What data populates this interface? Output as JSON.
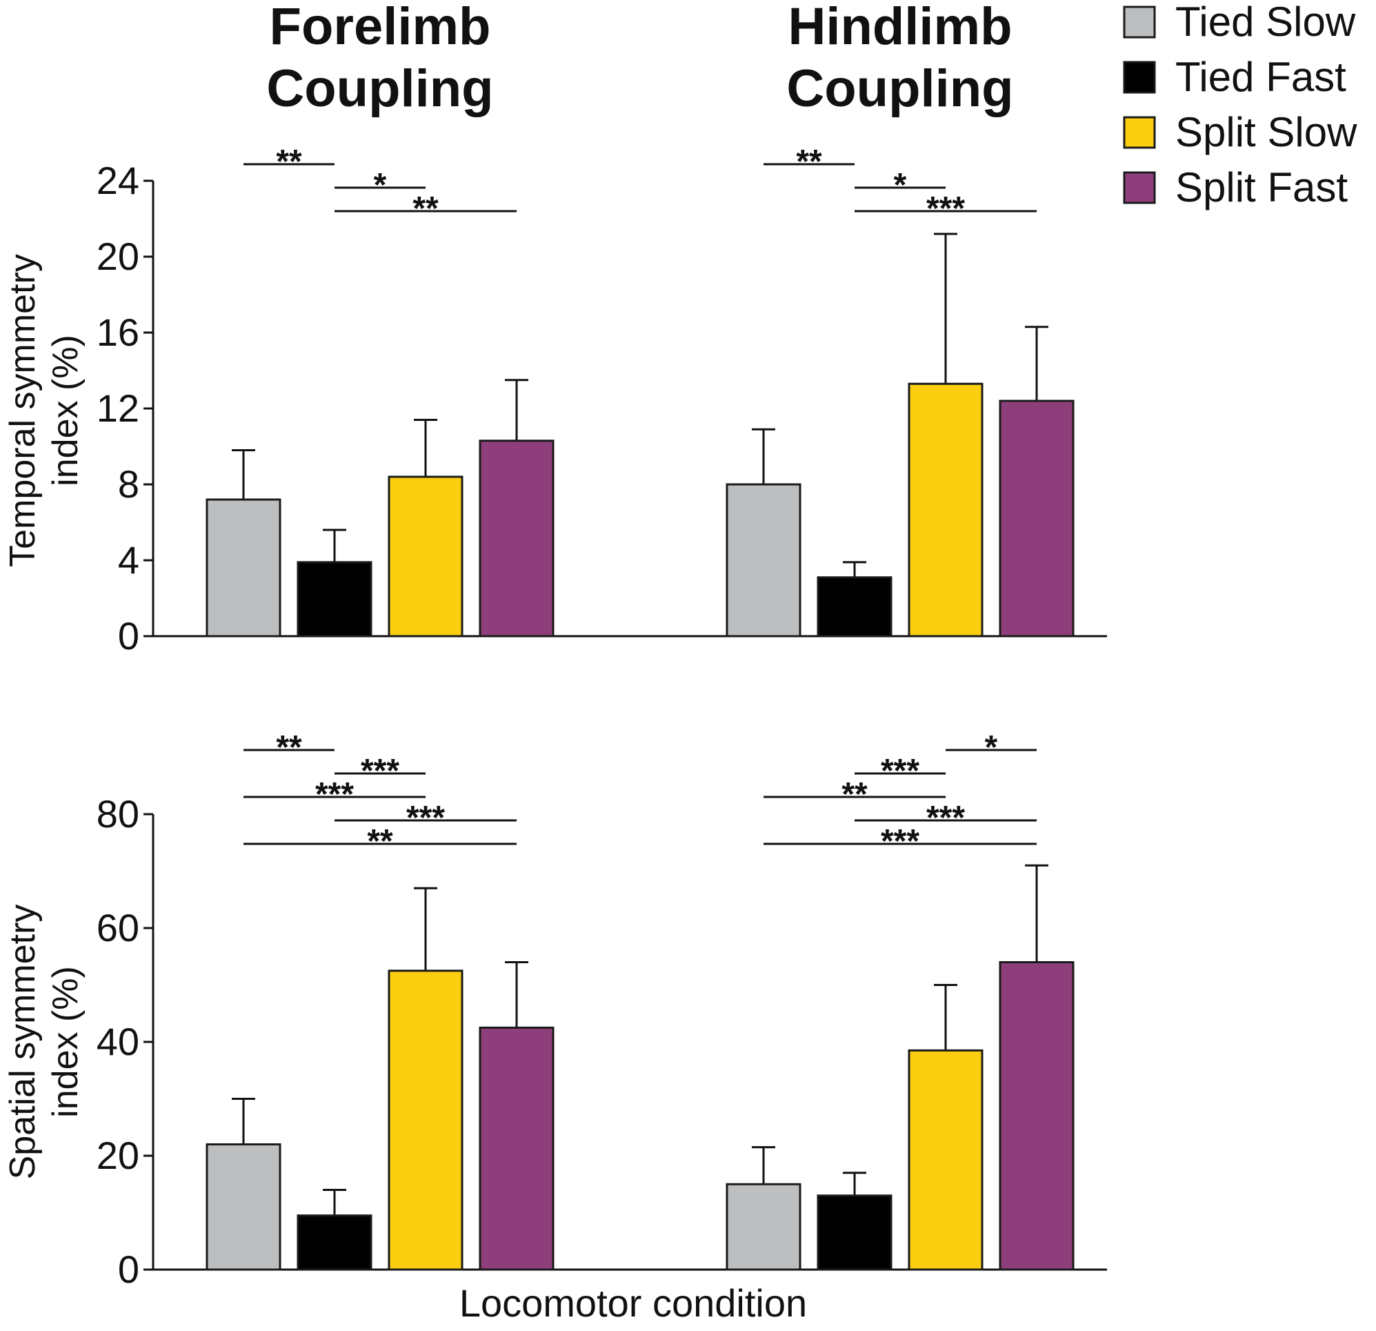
{
  "chart_data": [
    {
      "type": "bar",
      "panel": "top",
      "group_titles": [
        [
          "Forelimb",
          "Coupling"
        ],
        [
          "Hindlimb",
          "Coupling"
        ]
      ],
      "groups": [
        "Forelimb Coupling",
        "Hindlimb Coupling"
      ],
      "ylabel": [
        "Temporal symmetry",
        "index (%)"
      ],
      "ylim": [
        0,
        24
      ],
      "yticks": [
        0,
        4,
        8,
        12,
        16,
        20,
        24
      ],
      "series": [
        {
          "name": "Tied Slow",
          "color": "#bcbec0",
          "values": [
            7.2,
            8.0
          ],
          "errors": [
            2.6,
            2.9
          ]
        },
        {
          "name": "Tied Fast",
          "color": "#000000",
          "values": [
            3.9,
            3.1
          ],
          "errors": [
            1.7,
            0.8
          ]
        },
        {
          "name": "Split Slow",
          "color": "#fbcf0f",
          "values": [
            8.4,
            13.3
          ],
          "errors": [
            3.0,
            7.9
          ]
        },
        {
          "name": "Split Fast",
          "color": "#8e3f7b",
          "values": [
            10.3,
            12.4
          ],
          "errors": [
            3.2,
            3.9
          ]
        }
      ],
      "significance": [
        {
          "group": 0,
          "from": 0,
          "to": 1,
          "label": "**"
        },
        {
          "group": 0,
          "from": 1,
          "to": 2,
          "label": "*"
        },
        {
          "group": 0,
          "from": 1,
          "to": 3,
          "label": "**"
        },
        {
          "group": 1,
          "from": 0,
          "to": 1,
          "label": "**"
        },
        {
          "group": 1,
          "from": 1,
          "to": 2,
          "label": "*"
        },
        {
          "group": 1,
          "from": 1,
          "to": 3,
          "label": "***"
        }
      ]
    },
    {
      "type": "bar",
      "panel": "bottom",
      "groups": [
        "Forelimb Coupling",
        "Hindlimb Coupling"
      ],
      "ylabel": [
        "Spatial symmetry",
        "index (%)"
      ],
      "xlabel": "Locomotor condition",
      "ylim": [
        0,
        80
      ],
      "yticks": [
        0,
        20,
        40,
        60,
        80
      ],
      "series": [
        {
          "name": "Tied Slow",
          "color": "#bcbec0",
          "values": [
            22,
            15
          ],
          "errors": [
            8,
            6.5
          ]
        },
        {
          "name": "Tied Fast",
          "color": "#000000",
          "values": [
            9.5,
            13
          ],
          "errors": [
            4.5,
            4
          ]
        },
        {
          "name": "Split Slow",
          "color": "#fbcf0f",
          "values": [
            52.5,
            38.5
          ],
          "errors": [
            14.5,
            11.5
          ]
        },
        {
          "name": "Split Fast",
          "color": "#8e3f7b",
          "values": [
            42.5,
            54
          ],
          "errors": [
            11.5,
            17
          ]
        }
      ],
      "significance": [
        {
          "group": 0,
          "from": 0,
          "to": 1,
          "label": "**"
        },
        {
          "group": 0,
          "from": 1,
          "to": 2,
          "label": "***"
        },
        {
          "group": 0,
          "from": 0,
          "to": 2,
          "label": "***"
        },
        {
          "group": 0,
          "from": 1,
          "to": 3,
          "label": "***"
        },
        {
          "group": 0,
          "from": 0,
          "to": 3,
          "label": "**"
        },
        {
          "group": 1,
          "from": 2,
          "to": 3,
          "label": "*"
        },
        {
          "group": 1,
          "from": 1,
          "to": 2,
          "label": "***"
        },
        {
          "group": 1,
          "from": 0,
          "to": 2,
          "label": "**"
        },
        {
          "group": 1,
          "from": 1,
          "to": 3,
          "label": "***"
        },
        {
          "group": 1,
          "from": 0,
          "to": 3,
          "label": "***"
        }
      ]
    }
  ],
  "legend": {
    "entries": [
      {
        "label": "Tied Slow",
        "color": "#bcbec0"
      },
      {
        "label": "Tied Fast",
        "color": "#000000"
      },
      {
        "label": "Split Slow",
        "color": "#fbcf0f"
      },
      {
        "label": "Split Fast",
        "color": "#8e3f7b"
      }
    ]
  }
}
